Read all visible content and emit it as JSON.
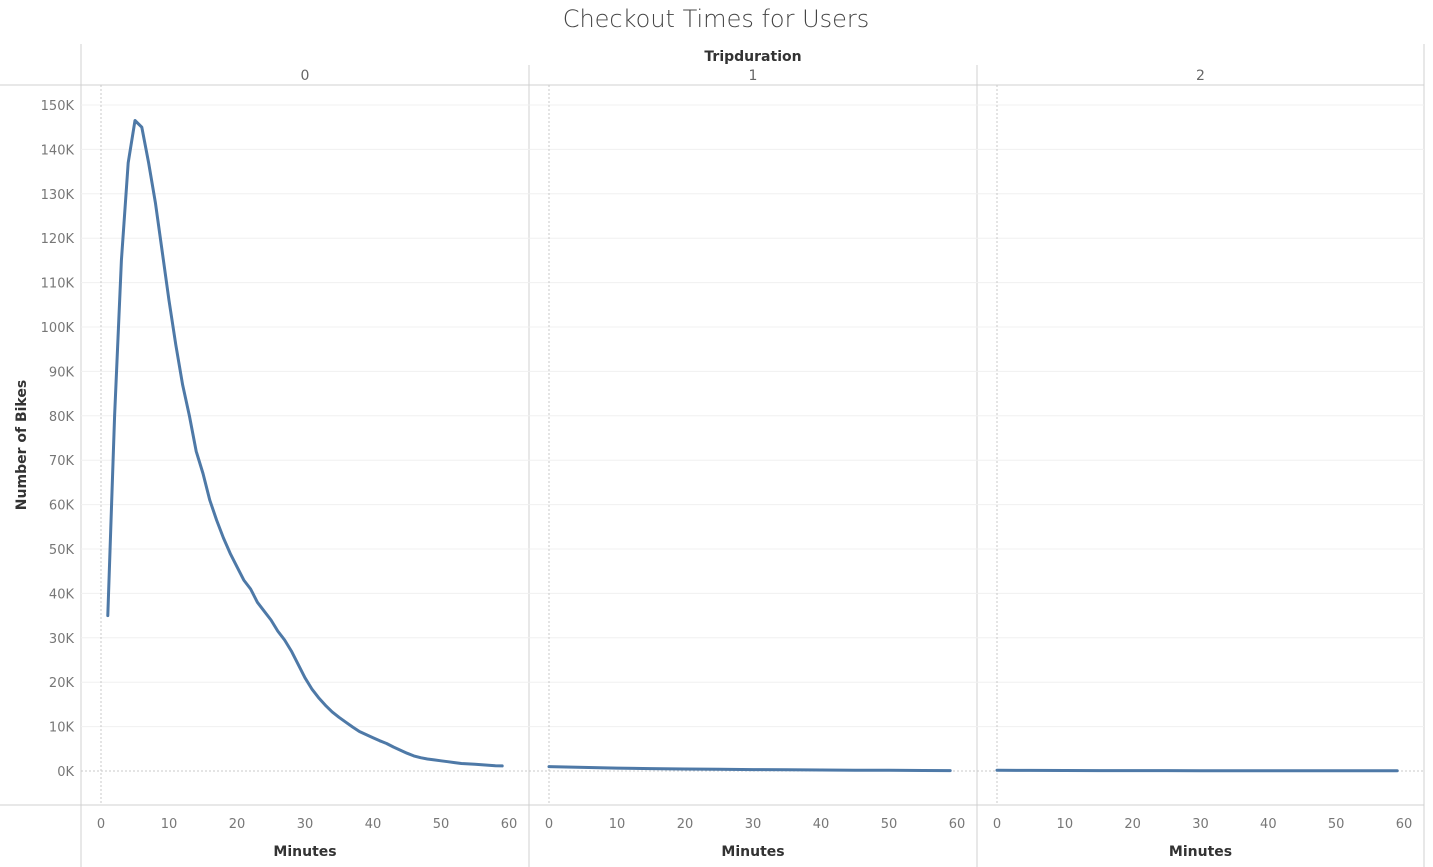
{
  "chart_data": {
    "type": "line",
    "title": "Checkout Times for Users",
    "facet_header": "Tripduration",
    "ylabel": "Number of Bikes",
    "xlabel": "Minutes",
    "ylim": [
      0,
      150000
    ],
    "xlim": [
      0,
      60
    ],
    "y_ticks": [
      "0K",
      "10K",
      "20K",
      "30K",
      "40K",
      "50K",
      "60K",
      "70K",
      "80K",
      "90K",
      "100K",
      "110K",
      "120K",
      "130K",
      "140K",
      "150K"
    ],
    "x_ticks": [
      "0",
      "10",
      "20",
      "30",
      "40",
      "50",
      "60"
    ],
    "grid": true,
    "line_color": "#4e79a7",
    "facets": [
      {
        "label": "0",
        "x": [
          1,
          2,
          3,
          4,
          5,
          6,
          7,
          8,
          9,
          10,
          11,
          12,
          13,
          14,
          15,
          16,
          17,
          18,
          19,
          20,
          21,
          22,
          23,
          24,
          25,
          26,
          27,
          28,
          29,
          30,
          31,
          32,
          33,
          34,
          35,
          36,
          37,
          38,
          39,
          40,
          41,
          42,
          43,
          44,
          45,
          46,
          47,
          48,
          49,
          50,
          51,
          52,
          53,
          54,
          55,
          56,
          57,
          58,
          59
        ],
        "y": [
          35000,
          80000,
          115000,
          137000,
          146500,
          145000,
          137000,
          128000,
          117000,
          106000,
          96000,
          87000,
          80000,
          72000,
          67000,
          61000,
          56500,
          52500,
          49000,
          46000,
          43000,
          41000,
          38000,
          36000,
          34000,
          31500,
          29500,
          27000,
          24000,
          21000,
          18500,
          16500,
          14800,
          13300,
          12100,
          11000,
          9900,
          8900,
          8200,
          7500,
          6800,
          6200,
          5400,
          4700,
          4000,
          3400,
          3000,
          2700,
          2500,
          2300,
          2100,
          1900,
          1700,
          1600,
          1500,
          1400,
          1300,
          1200,
          1150
        ]
      },
      {
        "label": "1",
        "x": [
          0,
          5,
          10,
          15,
          20,
          25,
          30,
          35,
          40,
          45,
          50,
          55,
          59
        ],
        "y": [
          1000,
          800,
          650,
          550,
          450,
          380,
          320,
          260,
          220,
          180,
          150,
          120,
          100
        ]
      },
      {
        "label": "2",
        "x": [
          0,
          5,
          10,
          15,
          20,
          25,
          30,
          35,
          40,
          45,
          50,
          55,
          59
        ],
        "y": [
          150,
          130,
          110,
          100,
          90,
          80,
          70,
          60,
          55,
          50,
          45,
          40,
          35
        ]
      }
    ]
  }
}
